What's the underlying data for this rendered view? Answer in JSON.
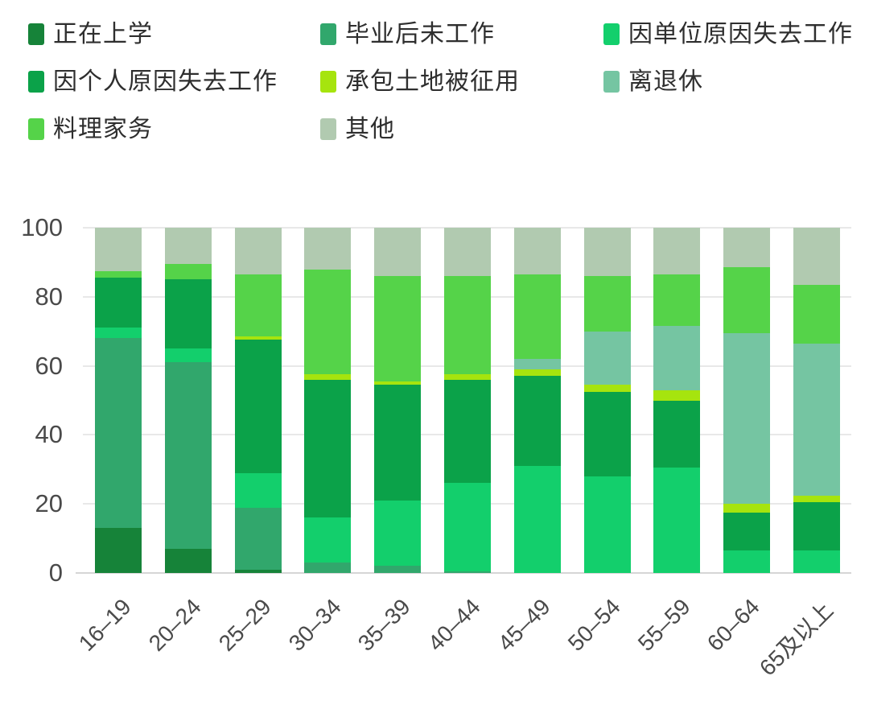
{
  "legend": {
    "position": "top-left",
    "rows": 3
  },
  "y_axis": {
    "tick_labels": [
      "0",
      "20",
      "40",
      "60",
      "80",
      "100"
    ]
  },
  "chart_data": {
    "type": "bar",
    "stacked": true,
    "grid": true,
    "legend_position": "top",
    "categories": [
      "16–19",
      "20–24",
      "25–29",
      "30–34",
      "35–39",
      "40–44",
      "45–49",
      "50–54",
      "55–59",
      "60–64",
      "65及以上"
    ],
    "series": [
      {
        "name": "正在上学",
        "color": "#168339",
        "values": [
          13,
          7,
          1,
          0,
          0,
          0,
          0,
          0,
          0,
          0,
          0
        ]
      },
      {
        "name": "毕业后未工作",
        "color": "#31a76c",
        "values": [
          55,
          54,
          18,
          3,
          2,
          0.5,
          0,
          0,
          0,
          0,
          0
        ]
      },
      {
        "name": "因单位原因失去工作",
        "color": "#13cf6c",
        "values": [
          3,
          4,
          10,
          13,
          19,
          25.5,
          31,
          28,
          30.5,
          6.5,
          6.5
        ]
      },
      {
        "name": "因个人原因失去工作",
        "color": "#0ba249",
        "values": [
          14.5,
          20,
          38.5,
          40,
          33.5,
          30,
          26,
          24.5,
          19.5,
          11,
          14
        ]
      },
      {
        "name": "承包土地被征用",
        "color": "#a6e40e",
        "values": [
          0,
          0,
          1,
          1.5,
          1,
          1.5,
          2,
          2,
          3,
          2.5,
          2
        ]
      },
      {
        "name": "离退休",
        "color": "#75c5a2",
        "values": [
          0,
          0,
          0,
          0,
          0,
          0,
          3,
          15.5,
          18.5,
          49.5,
          44
        ]
      },
      {
        "name": "料理家务",
        "color": "#55d349",
        "values": [
          2,
          4.5,
          18,
          30.5,
          30.5,
          28.5,
          24.5,
          16,
          15,
          19,
          17
        ]
      },
      {
        "name": "其他",
        "color": "#b1cab0",
        "values": [
          12.5,
          10.5,
          13.5,
          12,
          14,
          14,
          13.5,
          14,
          13.5,
          11.5,
          16.5
        ]
      }
    ],
    "xlabel": "",
    "ylabel": "",
    "ylim": [
      0,
      100
    ],
    "yticks": [
      0,
      20,
      40,
      60,
      80,
      100
    ]
  }
}
